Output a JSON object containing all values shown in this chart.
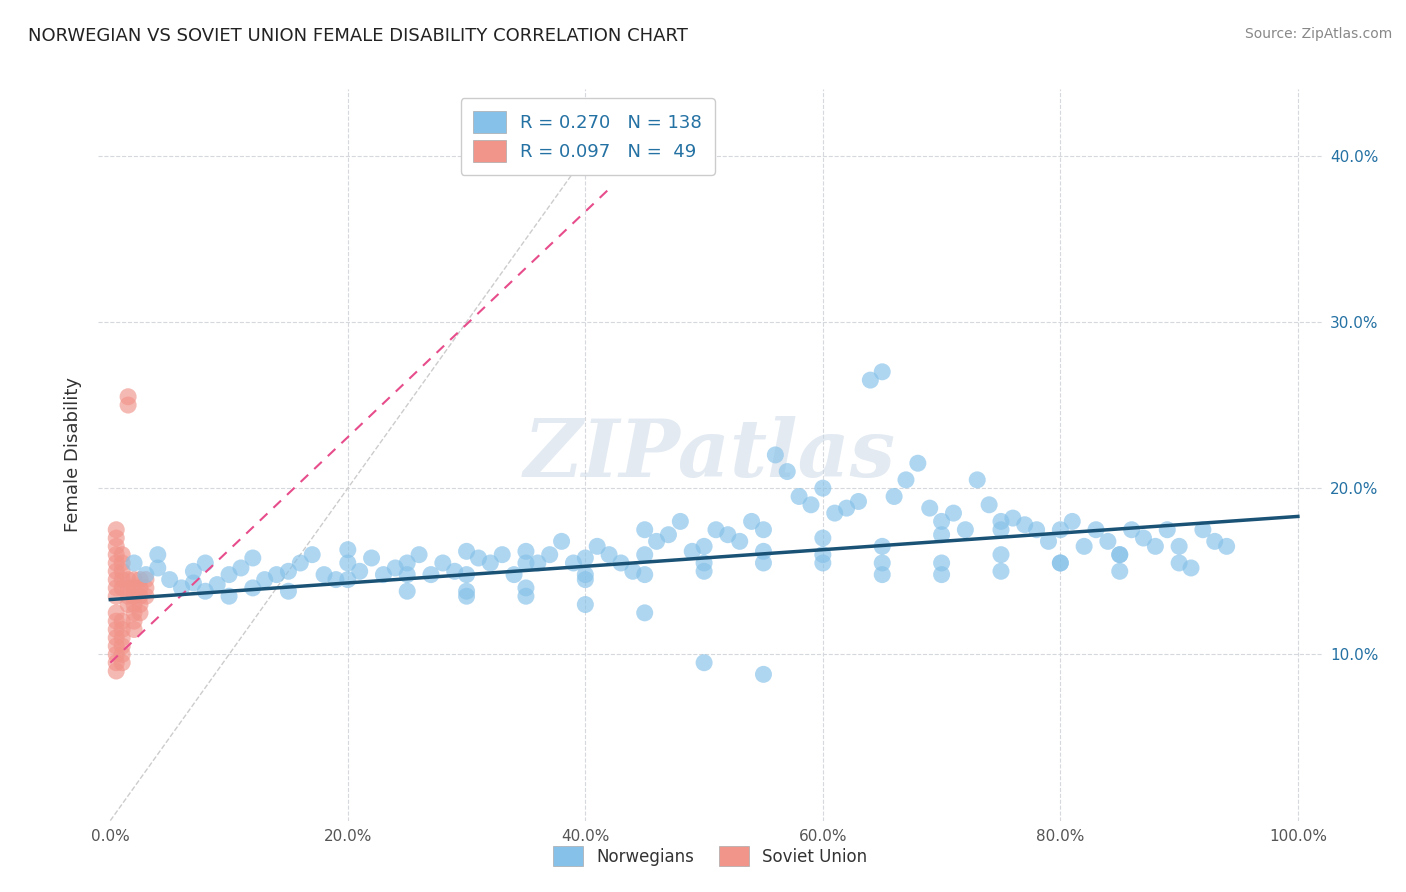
{
  "title": "NORWEGIAN VS SOVIET UNION FEMALE DISABILITY CORRELATION CHART",
  "source": "Source: ZipAtlas.com",
  "ylabel": "Female Disability",
  "x_tick_labels": [
    "0.0%",
    "20.0%",
    "40.0%",
    "60.0%",
    "80.0%",
    "100.0%"
  ],
  "x_ticks": [
    0.0,
    0.2,
    0.4,
    0.6,
    0.8,
    1.0
  ],
  "y_ticks": [
    0.0,
    0.1,
    0.2,
    0.3,
    0.4
  ],
  "y_tick_labels_right": [
    "",
    "10.0%",
    "20.0%",
    "30.0%",
    "40.0%"
  ],
  "xlim": [
    -0.01,
    1.02
  ],
  "ylim": [
    0.0,
    0.44
  ],
  "norwegian_R": 0.27,
  "norwegian_N": 138,
  "soviet_R": 0.097,
  "soviet_N": 49,
  "norwegian_color": "#85c1e9",
  "soviet_color": "#f1948a",
  "trend_blue": "#1a5276",
  "trend_pink": "#e74c8b",
  "background_color": "#ffffff",
  "grid_color": "#d5d8dc",
  "legend_text_color": "#2471a3",
  "watermark_text": "ZIPatlas",
  "norwegian_x": [
    0.02,
    0.03,
    0.04,
    0.04,
    0.05,
    0.06,
    0.07,
    0.07,
    0.08,
    0.08,
    0.09,
    0.1,
    0.1,
    0.11,
    0.12,
    0.12,
    0.13,
    0.14,
    0.15,
    0.15,
    0.16,
    0.17,
    0.18,
    0.19,
    0.2,
    0.2,
    0.21,
    0.22,
    0.23,
    0.24,
    0.25,
    0.26,
    0.27,
    0.28,
    0.29,
    0.3,
    0.31,
    0.32,
    0.33,
    0.34,
    0.35,
    0.36,
    0.37,
    0.38,
    0.39,
    0.4,
    0.41,
    0.42,
    0.43,
    0.44,
    0.45,
    0.46,
    0.47,
    0.48,
    0.49,
    0.5,
    0.51,
    0.52,
    0.53,
    0.54,
    0.55,
    0.56,
    0.57,
    0.58,
    0.59,
    0.6,
    0.61,
    0.62,
    0.63,
    0.64,
    0.65,
    0.66,
    0.67,
    0.68,
    0.69,
    0.7,
    0.71,
    0.72,
    0.73,
    0.74,
    0.75,
    0.76,
    0.77,
    0.78,
    0.79,
    0.8,
    0.81,
    0.82,
    0.83,
    0.84,
    0.85,
    0.86,
    0.87,
    0.88,
    0.89,
    0.9,
    0.91,
    0.92,
    0.93,
    0.94,
    0.3,
    0.35,
    0.4,
    0.45,
    0.5,
    0.55,
    0.6,
    0.65,
    0.7,
    0.75,
    0.25,
    0.3,
    0.35,
    0.4,
    0.45,
    0.5,
    0.55,
    0.6,
    0.65,
    0.7,
    0.75,
    0.8,
    0.85,
    0.9,
    0.2,
    0.25,
    0.3,
    0.35,
    0.4,
    0.45,
    0.5,
    0.55,
    0.6,
    0.65,
    0.7,
    0.75,
    0.8,
    0.85
  ],
  "norwegian_y": [
    0.155,
    0.148,
    0.152,
    0.16,
    0.145,
    0.14,
    0.143,
    0.15,
    0.138,
    0.155,
    0.142,
    0.135,
    0.148,
    0.152,
    0.14,
    0.158,
    0.145,
    0.148,
    0.15,
    0.138,
    0.155,
    0.16,
    0.148,
    0.145,
    0.155,
    0.163,
    0.15,
    0.158,
    0.148,
    0.152,
    0.155,
    0.16,
    0.148,
    0.155,
    0.15,
    0.162,
    0.158,
    0.155,
    0.16,
    0.148,
    0.162,
    0.155,
    0.16,
    0.168,
    0.155,
    0.158,
    0.165,
    0.16,
    0.155,
    0.15,
    0.175,
    0.168,
    0.172,
    0.18,
    0.162,
    0.165,
    0.175,
    0.172,
    0.168,
    0.18,
    0.175,
    0.22,
    0.21,
    0.195,
    0.19,
    0.2,
    0.185,
    0.188,
    0.192,
    0.265,
    0.27,
    0.195,
    0.205,
    0.215,
    0.188,
    0.18,
    0.185,
    0.175,
    0.205,
    0.19,
    0.175,
    0.182,
    0.178,
    0.175,
    0.168,
    0.175,
    0.18,
    0.165,
    0.175,
    0.168,
    0.16,
    0.175,
    0.17,
    0.165,
    0.175,
    0.155,
    0.152,
    0.175,
    0.168,
    0.165,
    0.148,
    0.155,
    0.148,
    0.16,
    0.155,
    0.162,
    0.17,
    0.165,
    0.172,
    0.18,
    0.138,
    0.135,
    0.14,
    0.145,
    0.148,
    0.15,
    0.155,
    0.16,
    0.155,
    0.148,
    0.15,
    0.155,
    0.16,
    0.165,
    0.145,
    0.148,
    0.138,
    0.135,
    0.13,
    0.125,
    0.095,
    0.088,
    0.155,
    0.148,
    0.155,
    0.16,
    0.155,
    0.15
  ],
  "soviet_x": [
    0.005,
    0.005,
    0.005,
    0.005,
    0.005,
    0.005,
    0.005,
    0.005,
    0.005,
    0.005,
    0.005,
    0.005,
    0.005,
    0.005,
    0.005,
    0.005,
    0.005,
    0.01,
    0.01,
    0.01,
    0.01,
    0.01,
    0.01,
    0.01,
    0.01,
    0.01,
    0.01,
    0.01,
    0.015,
    0.015,
    0.015,
    0.015,
    0.015,
    0.015,
    0.02,
    0.02,
    0.02,
    0.02,
    0.02,
    0.02,
    0.02,
    0.025,
    0.025,
    0.025,
    0.025,
    0.025,
    0.03,
    0.03,
    0.03
  ],
  "soviet_y": [
    0.135,
    0.14,
    0.145,
    0.15,
    0.155,
    0.16,
    0.165,
    0.17,
    0.175,
    0.125,
    0.12,
    0.115,
    0.11,
    0.105,
    0.1,
    0.095,
    0.09,
    0.14,
    0.145,
    0.15,
    0.155,
    0.16,
    0.12,
    0.115,
    0.11,
    0.105,
    0.1,
    0.095,
    0.25,
    0.255,
    0.145,
    0.14,
    0.135,
    0.13,
    0.145,
    0.14,
    0.135,
    0.13,
    0.125,
    0.12,
    0.115,
    0.145,
    0.14,
    0.135,
    0.13,
    0.125,
    0.145,
    0.14,
    0.135
  ],
  "norw_trend_x0": 0.0,
  "norw_trend_x1": 1.0,
  "norw_trend_y0": 0.133,
  "norw_trend_y1": 0.183,
  "soviet_trend_x0": 0.0,
  "soviet_trend_x1": 0.42,
  "soviet_trend_y0": 0.095,
  "soviet_trend_y1": 0.38
}
